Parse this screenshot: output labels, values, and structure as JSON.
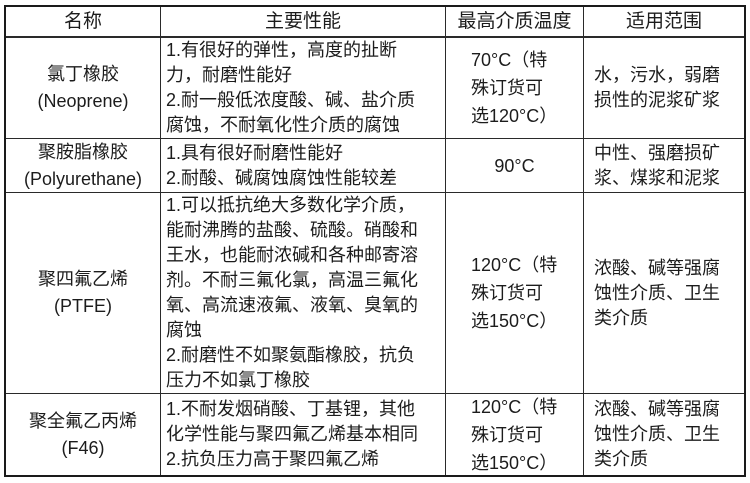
{
  "page": {
    "background_color": "#ffffff",
    "border_color": "#1a1a1a",
    "text_color": "#1c1c1c"
  },
  "table": {
    "headers": [
      {
        "label": "名称"
      },
      {
        "label": "主要性能"
      },
      {
        "label": "最高介质温度"
      },
      {
        "label": "适用范围"
      }
    ],
    "rows": [
      {
        "name_cn": "氯丁橡胶",
        "name_en": "(Neoprene)",
        "performance": "1.有很好的弹性，高度的扯断力，耐磨性能好\n2.耐一般低浓度酸、碱、盐介质腐蚀，不耐氧化性介质的腐蚀",
        "temperature": "70°C（特殊订货可选120°C）",
        "range": "水，污水，弱磨损性的泥浆矿浆"
      },
      {
        "name_cn": "聚胺脂橡胶",
        "name_en": "(Polyurethane)",
        "performance": "1.具有很好耐磨性能好\n2.耐酸、碱腐蚀腐蚀性能较差",
        "temperature": "90°C",
        "range": "中性、强磨损矿浆、煤浆和泥浆"
      },
      {
        "name_cn": "聚四氟乙烯",
        "name_en": "(PTFE)",
        "performance": "1.可以抵抗绝大多数化学介质，能耐沸腾的盐酸、硫酸。硝酸和王水，也能耐浓碱和各种邮寄溶剂。不耐三氟化氯，高温三氟化氧、高流速液氟、液氧、臭氧的腐蚀\n2.耐磨性不如聚氨酯橡胶，抗负压力不如氯丁橡胶",
        "temperature": "120°C（特殊订货可选150°C）",
        "range": "浓酸、碱等强腐蚀性介质、卫生类介质"
      },
      {
        "name_cn": "聚全氟乙丙烯",
        "name_en": "(F46)",
        "performance": "1.不耐发烟硝酸、丁基锂，其他化学性能与聚四氟乙烯基本相同\n2.抗负压力高于聚四氟乙烯",
        "temperature": "120°C（特殊订货可选150°C）",
        "range": "浓酸、碱等强腐蚀性介质、卫生类介质"
      }
    ]
  }
}
